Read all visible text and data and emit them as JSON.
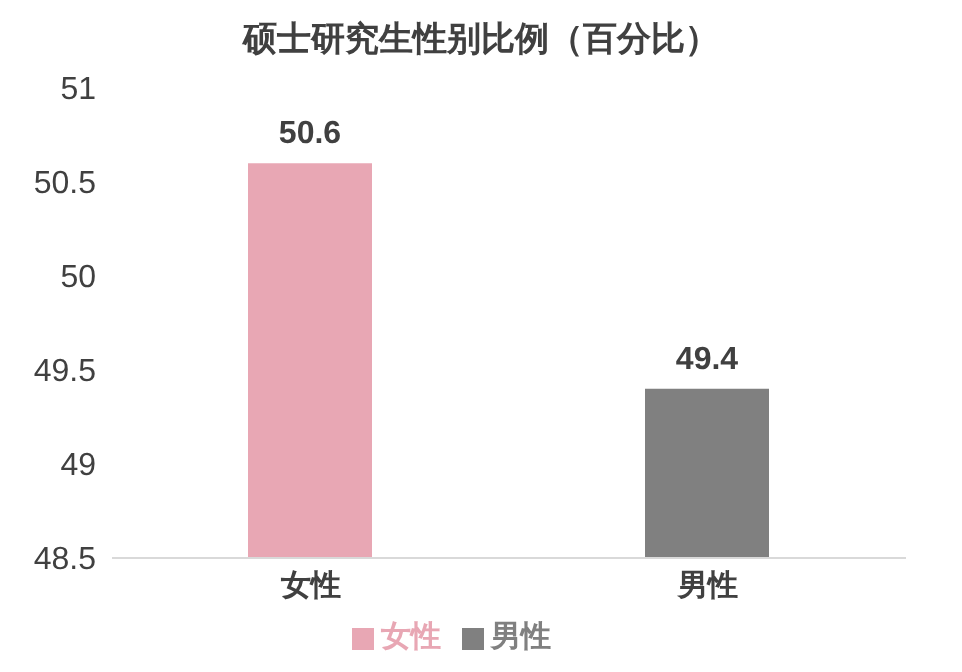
{
  "chart_data": {
    "type": "bar",
    "title": "硕士研究生性别比例（百分比）",
    "categories": [
      "女性",
      "男性"
    ],
    "series": [
      {
        "name": "女性",
        "color": "#e8a7b4",
        "values": [
          50.6,
          null
        ]
      },
      {
        "name": "男性",
        "color": "#808080",
        "values": [
          null,
          49.4
        ]
      }
    ],
    "ylim": [
      48.5,
      51
    ],
    "yticks": [
      48.5,
      49,
      49.5,
      50,
      50.5,
      51
    ],
    "grid": false,
    "legend": "bottom",
    "data_labels": true
  }
}
